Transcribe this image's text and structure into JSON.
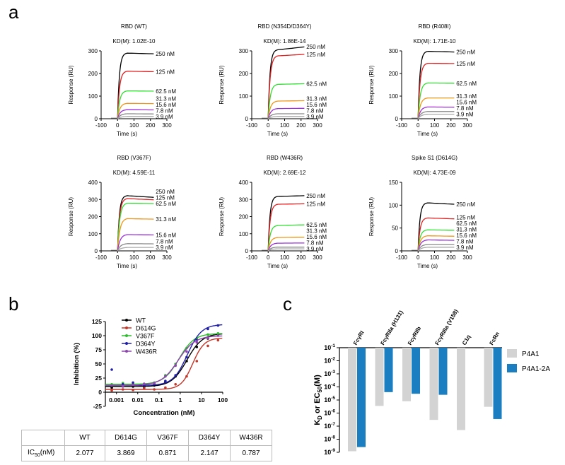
{
  "panel_labels": {
    "a": "a",
    "b": "b",
    "c": "c"
  },
  "chart_data": [
    {
      "type": "line",
      "panel": "a",
      "title": "RBD (WT)",
      "kd": "KD(M): 1.02E-10",
      "xlabel": "Time (s)",
      "ylabel": "Response (RU)",
      "xlim": [
        -100,
        300
      ],
      "ylim": [
        0,
        300
      ],
      "xticks": [
        -100,
        0,
        100,
        200,
        300
      ],
      "yticks": [
        0,
        100,
        200,
        300
      ],
      "series": [
        {
          "name": "250 nM",
          "plateau": 290,
          "end": 287
        },
        {
          "name": "125 nM",
          "plateau": 210,
          "end": 208
        },
        {
          "name": "62.5 nM",
          "plateau": 123,
          "end": 122
        },
        {
          "name": "31.3 nM",
          "plateau": 68,
          "end": 67
        },
        {
          "name": "15.6 nM",
          "plateau": 40,
          "end": 39
        },
        {
          "name": "7.8 nM",
          "plateau": 22,
          "end": 21
        },
        {
          "name": "3.9 nM",
          "plateau": 10,
          "end": 10
        }
      ]
    },
    {
      "type": "line",
      "panel": "a",
      "title": "RBD (N354D/D364Y)",
      "kd": "KD(M): 1.86E-14",
      "xlabel": "Time (s)",
      "ylabel": "Response (RU)",
      "xlim": [
        -100,
        300
      ],
      "ylim": [
        0,
        300
      ],
      "xticks": [
        -100,
        0,
        100,
        200,
        300
      ],
      "yticks": [
        0,
        100,
        200,
        300
      ],
      "series": [
        {
          "name": "250 nM",
          "plateau": 305,
          "end": 318
        },
        {
          "name": "125 nM",
          "plateau": 278,
          "end": 285
        },
        {
          "name": "62.5 nM",
          "plateau": 152,
          "end": 155
        },
        {
          "name": "31.3 nM",
          "plateau": 78,
          "end": 80
        },
        {
          "name": "15.6 nM",
          "plateau": 45,
          "end": 46
        },
        {
          "name": "7.8 nM",
          "plateau": 22,
          "end": 22
        },
        {
          "name": "3.9 nM",
          "plateau": 10,
          "end": 10
        }
      ]
    },
    {
      "type": "line",
      "panel": "a",
      "title": "RBD (R408I)",
      "kd": "KD(M): 1.71E-10",
      "xlabel": "Time (s)",
      "ylabel": "Response (RU)",
      "xlim": [
        -100,
        300
      ],
      "ylim": [
        0,
        300
      ],
      "xticks": [
        -100,
        0,
        100,
        200,
        300
      ],
      "yticks": [
        0,
        100,
        200,
        300
      ],
      "series": [
        {
          "name": "250 nM",
          "plateau": 298,
          "end": 295
        },
        {
          "name": "125 nM",
          "plateau": 245,
          "end": 244
        },
        {
          "name": "62.5 nM",
          "plateau": 158,
          "end": 157
        },
        {
          "name": "31.3 nM",
          "plateau": 92,
          "end": 92
        },
        {
          "name": "15.6 nM",
          "plateau": 52,
          "end": 51
        },
        {
          "name": "7.8 nM",
          "plateau": 32,
          "end": 32
        },
        {
          "name": "3.9 nM",
          "plateau": 20,
          "end": 20
        }
      ]
    },
    {
      "type": "line",
      "panel": "a",
      "title": "RBD (V367F)",
      "kd": "KD(M): 4.59E-11",
      "xlabel": "Time (s)",
      "ylabel": "Response (RU)",
      "xlim": [
        -100,
        300
      ],
      "ylim": [
        0,
        400
      ],
      "xticks": [
        -100,
        0,
        100,
        200,
        300
      ],
      "yticks": [
        0,
        100,
        200,
        300,
        400
      ],
      "series": [
        {
          "name": "250 nM",
          "plateau": 322,
          "end": 312
        },
        {
          "name": "125 nM",
          "plateau": 305,
          "end": 298
        },
        {
          "name": "62.5 nM",
          "plateau": 278,
          "end": 276
        },
        {
          "name": "31.3 nM",
          "plateau": 188,
          "end": 185
        },
        {
          "name": "15.6 nM",
          "plateau": 95,
          "end": 93
        },
        {
          "name": "7.8 nM",
          "plateau": 42,
          "end": 41
        },
        {
          "name": "3.9 nM",
          "plateau": 20,
          "end": 20
        }
      ]
    },
    {
      "type": "line",
      "panel": "a",
      "title": "RBD (W436R)",
      "kd": "KD(M): 2.69E-12",
      "xlabel": "Time (s)",
      "ylabel": "Response (RU)",
      "xlim": [
        -100,
        300
      ],
      "ylim": [
        0,
        400
      ],
      "xticks": [
        -100,
        0,
        100,
        200,
        300
      ],
      "yticks": [
        0,
        100,
        200,
        300,
        400
      ],
      "series": [
        {
          "name": "250 nM",
          "plateau": 318,
          "end": 322
        },
        {
          "name": "125 nM",
          "plateau": 272,
          "end": 275
        },
        {
          "name": "62.5 nM",
          "plateau": 148,
          "end": 152
        },
        {
          "name": "31.3 nM",
          "plateau": 78,
          "end": 80
        },
        {
          "name": "15.6 nM",
          "plateau": 45,
          "end": 46
        },
        {
          "name": "7.8 nM",
          "plateau": 22,
          "end": 22
        },
        {
          "name": "3.9 nM",
          "plateau": 12,
          "end": 12
        }
      ]
    },
    {
      "type": "line",
      "panel": "a",
      "title": "Spike S1 (D614G)",
      "kd": "KD(M): 4.73E-09",
      "xlabel": "Time (s)",
      "ylabel": "Response (RU)",
      "xlim": [
        -100,
        300
      ],
      "ylim": [
        0,
        150
      ],
      "xticks": [
        -100,
        0,
        100,
        200,
        300
      ],
      "yticks": [
        0,
        50,
        100,
        150
      ],
      "series": [
        {
          "name": "250 nM",
          "plateau": 105,
          "end": 102
        },
        {
          "name": "125 nM",
          "plateau": 72,
          "end": 70
        },
        {
          "name": "62.5 nM",
          "plateau": 46,
          "end": 45
        },
        {
          "name": "31.3 nM",
          "plateau": 33,
          "end": 32
        },
        {
          "name": "15.6 nM",
          "plateau": 24,
          "end": 23
        },
        {
          "name": "7.8 nM",
          "plateau": 14,
          "end": 14
        },
        {
          "name": "3.9 nM",
          "plateau": 8,
          "end": 8
        }
      ]
    },
    {
      "type": "scatter",
      "panel": "b",
      "xlabel": "Concentration (nM)",
      "ylabel": "Inhibition (%)",
      "xscale": "log",
      "xlim": [
        0.0003,
        100
      ],
      "ylim": [
        -25,
        125
      ],
      "xticks": [
        "0.001",
        "0.01",
        "0.1",
        "1",
        "10",
        "100"
      ],
      "yticks": [
        -25,
        0,
        25,
        50,
        75,
        100,
        125
      ],
      "legend": "top-left",
      "series": [
        {
          "name": "WT",
          "color": "#000000",
          "ic50": 2.077,
          "hill": 1.2,
          "bottom": 10,
          "top": 104,
          "x": [
            0.0006,
            0.002,
            0.006,
            0.02,
            0.06,
            0.2,
            0.6,
            2,
            6,
            20,
            60
          ],
          "y": [
            8,
            12,
            10,
            9,
            12,
            18,
            28,
            55,
            80,
            95,
            102
          ]
        },
        {
          "name": "D614G",
          "color": "#c0392b",
          "ic50": 3.869,
          "hill": 1.6,
          "bottom": 5,
          "top": 96,
          "x": [
            0.0006,
            0.002,
            0.006,
            0.02,
            0.06,
            0.2,
            0.6,
            2,
            6,
            20,
            60
          ],
          "y": [
            3,
            5,
            4,
            7,
            5,
            8,
            14,
            28,
            55,
            82,
            92
          ]
        },
        {
          "name": "V367F",
          "color": "#2bbd2b",
          "ic50": 0.871,
          "hill": 1.2,
          "bottom": 14,
          "top": 104,
          "x": [
            0.0006,
            0.002,
            0.006,
            0.02,
            0.06,
            0.2,
            0.6,
            2,
            6,
            20,
            60
          ],
          "y": [
            14,
            16,
            15,
            14,
            17,
            30,
            50,
            78,
            95,
            102,
            104
          ]
        },
        {
          "name": "D364Y",
          "color": "#1f1fa8",
          "ic50": 2.147,
          "hill": 1.3,
          "bottom": 12,
          "top": 120,
          "x": [
            0.0006,
            0.002,
            0.006,
            0.02,
            0.06,
            0.2,
            0.6,
            2,
            6,
            20,
            60
          ],
          "y": [
            40,
            14,
            17,
            12,
            15,
            20,
            30,
            62,
            92,
            112,
            118
          ]
        },
        {
          "name": "W436R",
          "color": "#8e44ad",
          "ic50": 0.787,
          "hill": 1.1,
          "bottom": 12,
          "top": 100,
          "x": [
            0.0006,
            0.002,
            0.006,
            0.02,
            0.06,
            0.2,
            0.6,
            2,
            6,
            20,
            60
          ],
          "y": [
            12,
            10,
            13,
            15,
            16,
            28,
            47,
            72,
            88,
            96,
            100
          ]
        }
      ]
    },
    {
      "type": "table",
      "panel": "b",
      "columns": [
        "",
        "WT",
        "D614G",
        "V367F",
        "D364Y",
        "W436R"
      ],
      "row_label": "IC",
      "row_label_sub": "50",
      "row_label_unit": "(nM)",
      "values": [
        "2.077",
        "3.869",
        "0.871",
        "2.147",
        "0.787"
      ]
    },
    {
      "type": "bar",
      "panel": "c",
      "ylabel": "K",
      "ylabel_sub1": "D",
      "ylabel_mid": " or EC",
      "ylabel_sub2": "50",
      "ylabel_unit": "(M)",
      "yscale": "log",
      "ylim": [
        1e-09,
        0.1
      ],
      "ytick_exponents": [
        "-1",
        "-2",
        "-3",
        "-4",
        "-5",
        "-6",
        "-7",
        "-8",
        "-9"
      ],
      "categories": [
        "FcγRI",
        "FcγRIIa (H131)",
        "FcγRIIb",
        "FcγRIIIa (V158)",
        "C1q",
        "FcRn"
      ],
      "legend": "right",
      "series": [
        {
          "name": "P4A1",
          "color": "#d3d3d3",
          "values": [
            1.2e-09,
            3.5e-06,
            8e-06,
            3e-07,
            5e-08,
            3e-06
          ]
        },
        {
          "name": "P4A1-2A",
          "color": "#1a7ec0",
          "values": [
            2.5e-09,
            4e-05,
            3e-05,
            2.5e-05,
            null,
            3.5e-07
          ]
        }
      ]
    }
  ]
}
